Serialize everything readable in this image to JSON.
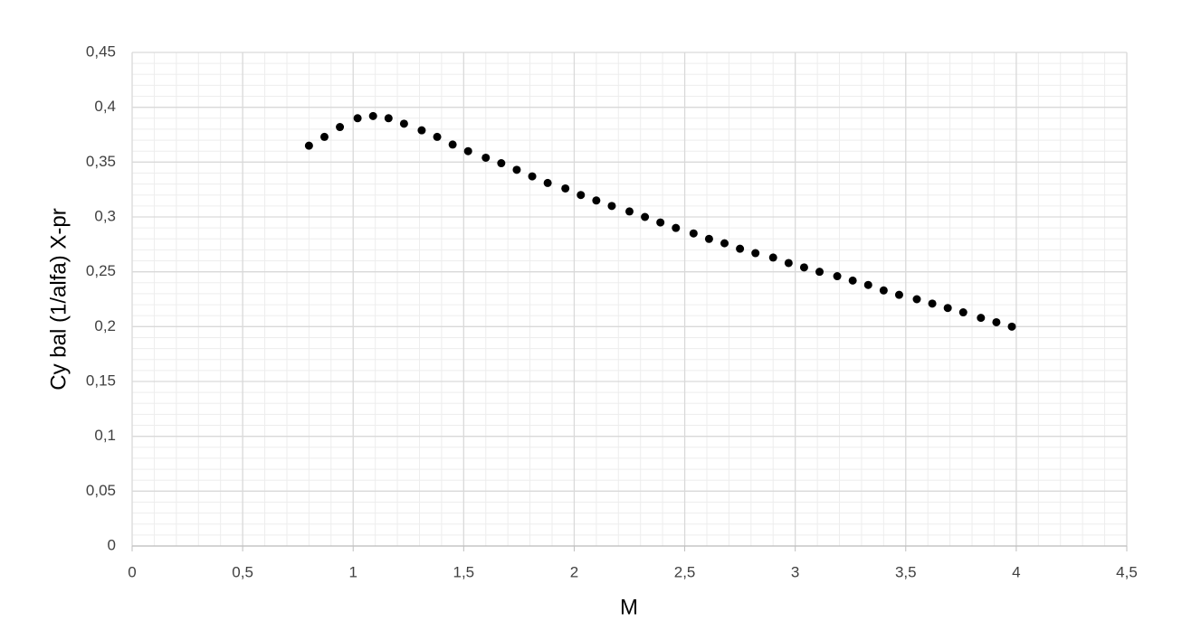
{
  "chart_data": {
    "type": "scatter",
    "x_label": "M",
    "y_label": "Cy bal (1/alfa) X-pr",
    "xlim": [
      0,
      4.5
    ],
    "ylim": [
      0,
      0.45
    ],
    "xticks": [
      0,
      {
        "value": 0.5,
        "label": "0,5"
      },
      1,
      {
        "value": 1.5,
        "label": "1,5"
      },
      2,
      {
        "value": 2.5,
        "label": "2,5"
      },
      3,
      {
        "value": 3.5,
        "label": "3,5"
      },
      4,
      {
        "value": 4.5,
        "label": "4,5"
      }
    ],
    "yticks": [
      0,
      {
        "value": 0.05,
        "label": "0,05"
      },
      {
        "value": 0.1,
        "label": "0,1"
      },
      {
        "value": 0.15,
        "label": "0,15"
      },
      {
        "value": 0.2,
        "label": "0,2"
      },
      {
        "value": 0.25,
        "label": "0,25"
      },
      {
        "value": 0.3,
        "label": "0,3"
      },
      {
        "value": 0.35,
        "label": "0,35"
      },
      {
        "value": 0.4,
        "label": "0,4"
      },
      {
        "value": 0.45,
        "label": "0,45"
      }
    ],
    "grid": true,
    "minor_grid": true,
    "color": "#000000",
    "x": [
      0.8,
      0.87,
      0.94,
      1.02,
      1.09,
      1.16,
      1.23,
      1.31,
      1.38,
      1.45,
      1.52,
      1.6,
      1.67,
      1.74,
      1.81,
      1.88,
      1.96,
      2.03,
      2.1,
      2.17,
      2.25,
      2.32,
      2.39,
      2.46,
      2.54,
      2.61,
      2.68,
      2.75,
      2.82,
      2.9,
      2.97,
      3.04,
      3.11,
      3.19,
      3.26,
      3.33,
      3.4,
      3.47,
      3.55,
      3.62,
      3.69,
      3.76,
      3.84,
      3.91,
      3.98
    ],
    "values": [
      0.365,
      0.373,
      0.382,
      0.39,
      0.392,
      0.39,
      0.385,
      0.379,
      0.373,
      0.366,
      0.36,
      0.354,
      0.349,
      0.343,
      0.337,
      0.331,
      0.326,
      0.32,
      0.315,
      0.31,
      0.305,
      0.3,
      0.295,
      0.29,
      0.285,
      0.28,
      0.276,
      0.271,
      0.267,
      0.263,
      0.258,
      0.254,
      0.25,
      0.246,
      0.242,
      0.238,
      0.233,
      0.229,
      0.225,
      0.221,
      0.217,
      0.213,
      0.208,
      0.204,
      0.2
    ]
  }
}
